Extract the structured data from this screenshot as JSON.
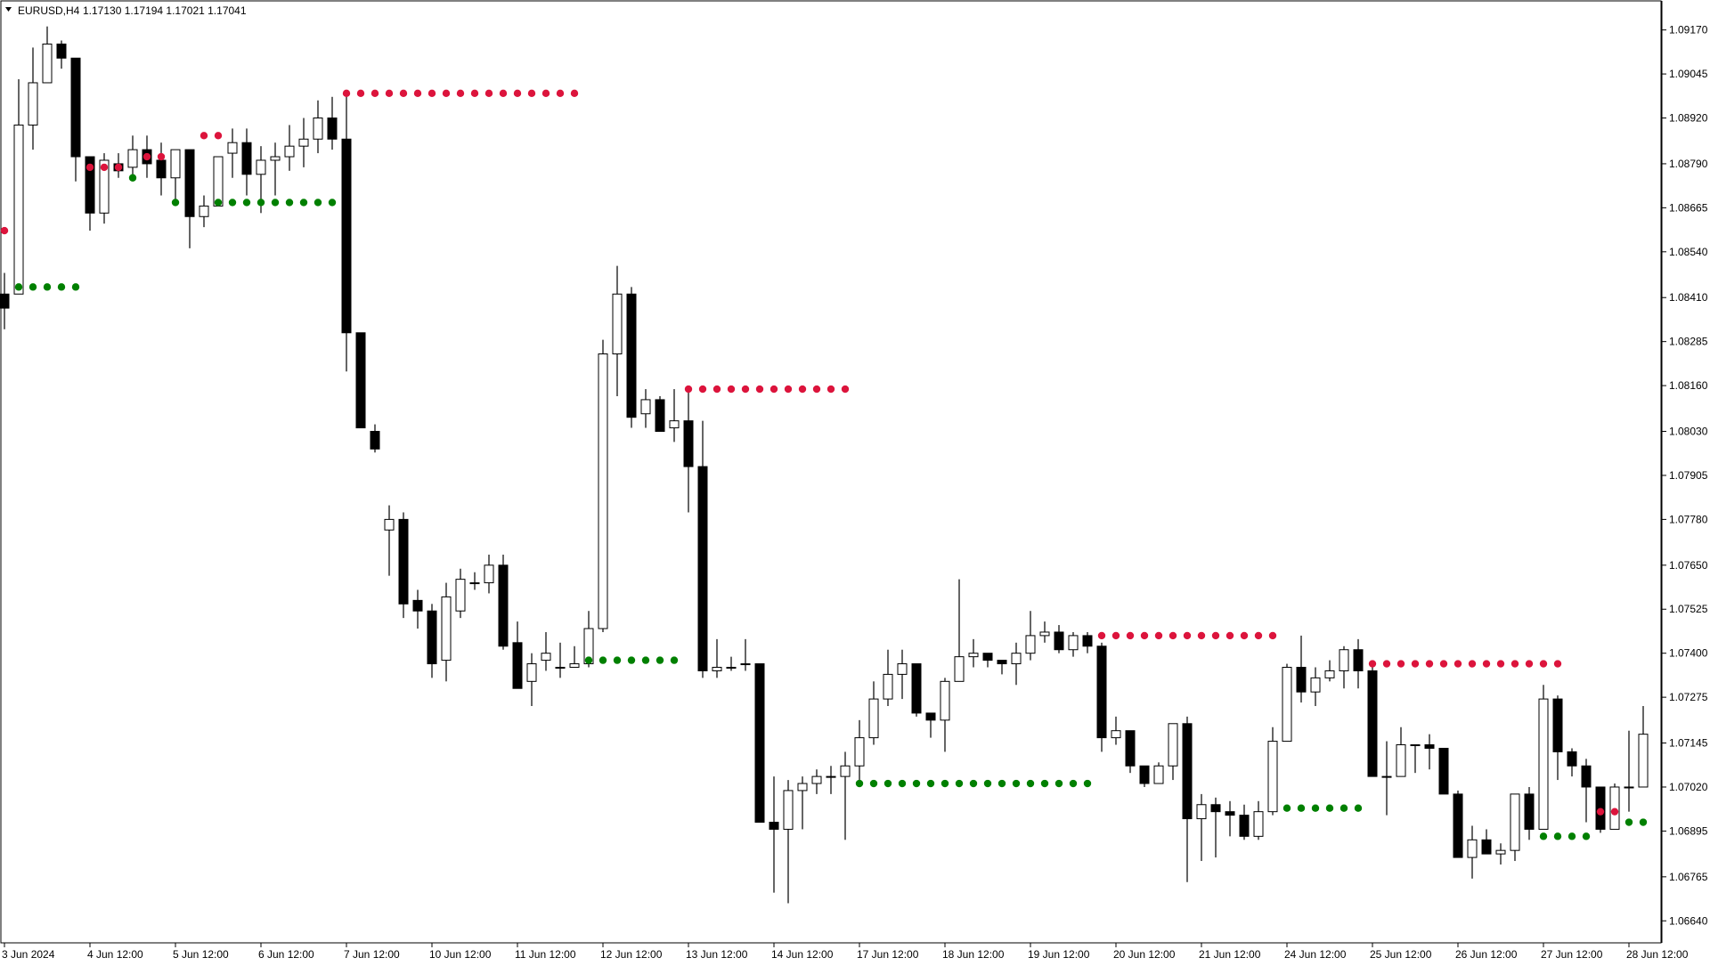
{
  "header": {
    "symbol": "EURUSD,H4",
    "ohlc": "1.17130 1.17194 1.17021 1.17041"
  },
  "colors": {
    "bull_body": "#ffffff",
    "bear_body": "#000000",
    "wick": "#000000",
    "resistance_dots": "#dc143c",
    "support_dots": "#008000",
    "frame": "#000000",
    "background": "#ffffff"
  },
  "chart_data": {
    "type": "candlestick",
    "timeframe": "H4",
    "ylim": [
      1.0658,
      1.0925
    ],
    "y_ticks": [
      "1.09170",
      "1.09045",
      "1.08920",
      "1.08790",
      "1.08665",
      "1.08540",
      "1.08410",
      "1.08285",
      "1.08160",
      "1.08030",
      "1.07905",
      "1.07780",
      "1.07650",
      "1.07525",
      "1.07400",
      "1.07275",
      "1.07145",
      "1.07020",
      "1.06895",
      "1.06765",
      "1.06640"
    ],
    "x_ticks": [
      {
        "label": "3 Jun 2024",
        "index": 0
      },
      {
        "label": "4 Jun 12:00",
        "index": 6
      },
      {
        "label": "5 Jun 12:00",
        "index": 12
      },
      {
        "label": "6 Jun 12:00",
        "index": 18
      },
      {
        "label": "7 Jun 12:00",
        "index": 24
      },
      {
        "label": "10 Jun 12:00",
        "index": 30
      },
      {
        "label": "11 Jun 12:00",
        "index": 36
      },
      {
        "label": "12 Jun 12:00",
        "index": 42
      },
      {
        "label": "13 Jun 12:00",
        "index": 48
      },
      {
        "label": "14 Jun 12:00",
        "index": 54
      },
      {
        "label": "17 Jun 12:00",
        "index": 60
      },
      {
        "label": "18 Jun 12:00",
        "index": 66
      },
      {
        "label": "19 Jun 12:00",
        "index": 72
      },
      {
        "label": "20 Jun 12:00",
        "index": 78
      },
      {
        "label": "21 Jun 12:00",
        "index": 84
      },
      {
        "label": "24 Jun 12:00",
        "index": 90
      },
      {
        "label": "25 Jun 12:00",
        "index": 96
      },
      {
        "label": "26 Jun 12:00",
        "index": 102
      },
      {
        "label": "27 Jun 12:00",
        "index": 108
      },
      {
        "label": "28 Jun 12:00",
        "index": 114
      }
    ],
    "candles": [
      [
        1.0842,
        1.0838,
        1.0848,
        1.0832
      ],
      [
        1.0842,
        1.089,
        1.0903,
        1.0842
      ],
      [
        1.089,
        1.0902,
        1.0912,
        1.0883
      ],
      [
        1.0902,
        1.0913,
        1.0918,
        1.0902
      ],
      [
        1.0913,
        1.0909,
        1.0914,
        1.0906
      ],
      [
        1.0909,
        1.0881,
        1.0909,
        1.0874
      ],
      [
        1.0881,
        1.0865,
        1.0881,
        1.086
      ],
      [
        1.0865,
        1.088,
        1.0882,
        1.0862
      ],
      [
        1.0879,
        1.0877,
        1.0882,
        1.0875
      ],
      [
        1.0878,
        1.0883,
        1.0887,
        1.0875
      ],
      [
        1.0883,
        1.0879,
        1.0887,
        1.0875
      ],
      [
        1.088,
        1.0875,
        1.0885,
        1.087
      ],
      [
        1.0875,
        1.0883,
        1.0883,
        1.0868
      ],
      [
        1.0883,
        1.0864,
        1.0883,
        1.0855
      ],
      [
        1.0864,
        1.0867,
        1.087,
        1.0861
      ],
      [
        1.0867,
        1.0881,
        1.0881,
        1.0867
      ],
      [
        1.0882,
        1.0885,
        1.0889,
        1.0875
      ],
      [
        1.0885,
        1.0876,
        1.0889,
        1.087
      ],
      [
        1.0876,
        1.088,
        1.0884,
        1.0865
      ],
      [
        1.088,
        1.0881,
        1.0885,
        1.087
      ],
      [
        1.0881,
        1.0884,
        1.089,
        1.0877
      ],
      [
        1.0884,
        1.0886,
        1.0892,
        1.0878
      ],
      [
        1.0886,
        1.0892,
        1.0897,
        1.0882
      ],
      [
        1.0892,
        1.0886,
        1.0898,
        1.0883
      ],
      [
        1.0886,
        1.0831,
        1.0899,
        1.082
      ],
      [
        1.0831,
        1.0804,
        1.0831,
        1.0804
      ],
      [
        1.0803,
        1.0798,
        1.0805,
        1.0797
      ],
      [
        1.0775,
        1.0778,
        1.0782,
        1.0762
      ],
      [
        1.0778,
        1.0754,
        1.078,
        1.075
      ],
      [
        1.0755,
        1.0752,
        1.0758,
        1.0747
      ],
      [
        1.0752,
        1.0737,
        1.0754,
        1.0733
      ],
      [
        1.0738,
        1.0756,
        1.076,
        1.0732
      ],
      [
        1.0752,
        1.0761,
        1.0764,
        1.075
      ],
      [
        1.076,
        1.076,
        1.0763,
        1.0758
      ],
      [
        1.076,
        1.0765,
        1.0768,
        1.0757
      ],
      [
        1.0765,
        1.0742,
        1.0768,
        1.0741
      ],
      [
        1.0743,
        1.073,
        1.0749,
        1.073
      ],
      [
        1.0732,
        1.0737,
        1.074,
        1.0725
      ],
      [
        1.0738,
        1.074,
        1.0746,
        1.0735
      ],
      [
        1.0736,
        1.0736,
        1.0743,
        1.0733
      ],
      [
        1.0736,
        1.0737,
        1.0742,
        1.0736
      ],
      [
        1.0737,
        1.0747,
        1.0752,
        1.0736
      ],
      [
        1.0747,
        1.0825,
        1.0829,
        1.0746
      ],
      [
        1.0825,
        1.0842,
        1.085,
        1.0813
      ],
      [
        1.0842,
        1.0807,
        1.0844,
        1.0804
      ],
      [
        1.0808,
        1.0812,
        1.0815,
        1.0804
      ],
      [
        1.0812,
        1.0803,
        1.0813,
        1.0803
      ],
      [
        1.0804,
        1.0806,
        1.0815,
        1.08
      ],
      [
        1.0806,
        1.0793,
        1.0815,
        1.078
      ],
      [
        1.0793,
        1.0735,
        1.0806,
        1.0733
      ],
      [
        1.0735,
        1.0736,
        1.0744,
        1.0733
      ],
      [
        1.0736,
        1.0736,
        1.0739,
        1.0735
      ],
      [
        1.0737,
        1.0737,
        1.0744,
        1.0735
      ],
      [
        1.0737,
        1.0692,
        1.0737,
        1.0692
      ],
      [
        1.0692,
        1.069,
        1.0705,
        1.0672
      ],
      [
        1.069,
        1.0701,
        1.0704,
        1.0669
      ],
      [
        1.0701,
        1.0703,
        1.0705,
        1.069
      ],
      [
        1.0703,
        1.0705,
        1.0707,
        1.07
      ],
      [
        1.0705,
        1.0705,
        1.0708,
        1.07
      ],
      [
        1.0705,
        1.0708,
        1.0712,
        1.0687
      ],
      [
        1.0708,
        1.0716,
        1.0721,
        1.0704
      ],
      [
        1.0716,
        1.0727,
        1.0732,
        1.0714
      ],
      [
        1.0727,
        1.0734,
        1.0741,
        1.0725
      ],
      [
        1.0734,
        1.0737,
        1.0741,
        1.0727
      ],
      [
        1.0737,
        1.0723,
        1.0737,
        1.0722
      ],
      [
        1.0723,
        1.0721,
        1.0723,
        1.0716
      ],
      [
        1.0721,
        1.0732,
        1.0733,
        1.0712
      ],
      [
        1.0732,
        1.0739,
        1.0761,
        1.0732
      ],
      [
        1.0739,
        1.074,
        1.0744,
        1.0736
      ],
      [
        1.074,
        1.0738,
        1.074,
        1.0736
      ],
      [
        1.0738,
        1.0737,
        1.0738,
        1.0734
      ],
      [
        1.0737,
        1.074,
        1.0743,
        1.0731
      ],
      [
        1.074,
        1.0745,
        1.0752,
        1.0738
      ],
      [
        1.0745,
        1.0746,
        1.0749,
        1.0743
      ],
      [
        1.0746,
        1.0741,
        1.0748,
        1.074
      ],
      [
        1.0741,
        1.0745,
        1.0746,
        1.0739
      ],
      [
        1.0745,
        1.0742,
        1.0746,
        1.074
      ],
      [
        1.0742,
        1.0716,
        1.0743,
        1.0712
      ],
      [
        1.0716,
        1.0718,
        1.0722,
        1.0714
      ],
      [
        1.0718,
        1.0708,
        1.0718,
        1.0706
      ],
      [
        1.0708,
        1.0703,
        1.0708,
        1.0702
      ],
      [
        1.0703,
        1.0708,
        1.0709,
        1.0703
      ],
      [
        1.0708,
        1.072,
        1.072,
        1.0704
      ],
      [
        1.072,
        1.0693,
        1.0722,
        1.0675
      ],
      [
        1.0693,
        1.0697,
        1.07,
        1.0681
      ],
      [
        1.0697,
        1.0695,
        1.0699,
        1.0682
      ],
      [
        1.0695,
        1.0694,
        1.0698,
        1.0688
      ],
      [
        1.0694,
        1.0688,
        1.0697,
        1.0687
      ],
      [
        1.0688,
        1.0695,
        1.0698,
        1.0687
      ],
      [
        1.0695,
        1.0715,
        1.0719,
        1.0694
      ],
      [
        1.0715,
        1.0736,
        1.0737,
        1.0715
      ],
      [
        1.0736,
        1.0729,
        1.0745,
        1.0726
      ],
      [
        1.0729,
        1.0733,
        1.0736,
        1.0725
      ],
      [
        1.0733,
        1.0735,
        1.0738,
        1.0732
      ],
      [
        1.0735,
        1.0741,
        1.0742,
        1.073
      ],
      [
        1.0741,
        1.0735,
        1.0744,
        1.073
      ],
      [
        1.0735,
        1.0705,
        1.0737,
        1.0705
      ],
      [
        1.0705,
        1.0705,
        1.0715,
        1.0694
      ],
      [
        1.0705,
        1.0714,
        1.0719,
        1.0705
      ],
      [
        1.0714,
        1.0714,
        1.0714,
        1.0706
      ],
      [
        1.0714,
        1.0713,
        1.0717,
        1.0707
      ],
      [
        1.0713,
        1.07,
        1.0713,
        1.07
      ],
      [
        1.07,
        1.0682,
        1.0701,
        1.0682
      ],
      [
        1.0682,
        1.0687,
        1.0691,
        1.0676
      ],
      [
        1.0687,
        1.0683,
        1.069,
        1.0683
      ],
      [
        1.0683,
        1.0684,
        1.0686,
        1.068
      ],
      [
        1.0684,
        1.07,
        1.07,
        1.0681
      ],
      [
        1.07,
        1.069,
        1.0702,
        1.0687
      ],
      [
        1.069,
        1.0727,
        1.0731,
        1.069
      ],
      [
        1.0727,
        1.0712,
        1.0728,
        1.0704
      ],
      [
        1.0712,
        1.0708,
        1.0713,
        1.0705
      ],
      [
        1.0708,
        1.0702,
        1.071,
        1.0692
      ],
      [
        1.0702,
        1.069,
        1.0702,
        1.0689
      ],
      [
        1.069,
        1.0702,
        1.0703,
        1.069
      ],
      [
        1.0702,
        1.0702,
        1.0718,
        1.0695
      ],
      [
        1.0702,
        1.0717,
        1.0725,
        1.0702
      ]
    ],
    "resistance_levels": [
      {
        "price": 1.086,
        "from": 0,
        "to": 0
      },
      {
        "price": 1.0878,
        "from": 6,
        "to": 8
      },
      {
        "price": 1.0881,
        "from": 10,
        "to": 11
      },
      {
        "price": 1.0887,
        "from": 14,
        "to": 15
      },
      {
        "price": 1.0899,
        "from": 24,
        "to": 40
      },
      {
        "price": 1.0815,
        "from": 48,
        "to": 59
      },
      {
        "price": 1.0745,
        "from": 77,
        "to": 89
      },
      {
        "price": 1.0737,
        "from": 96,
        "to": 109
      },
      {
        "price": 1.0695,
        "from": 112,
        "to": 113
      }
    ],
    "support_levels": [
      {
        "price": 1.0844,
        "from": 1,
        "to": 5
      },
      {
        "price": 1.0875,
        "from": 9,
        "to": 9
      },
      {
        "price": 1.0868,
        "from": 12,
        "to": 12
      },
      {
        "price": 1.0868,
        "from": 15,
        "to": 23
      },
      {
        "price": 1.0738,
        "from": 41,
        "to": 47
      },
      {
        "price": 1.0703,
        "from": 60,
        "to": 76
      },
      {
        "price": 1.0696,
        "from": 90,
        "to": 95
      },
      {
        "price": 1.0688,
        "from": 108,
        "to": 111
      },
      {
        "price": 1.0692,
        "from": 114,
        "to": 115
      }
    ]
  }
}
